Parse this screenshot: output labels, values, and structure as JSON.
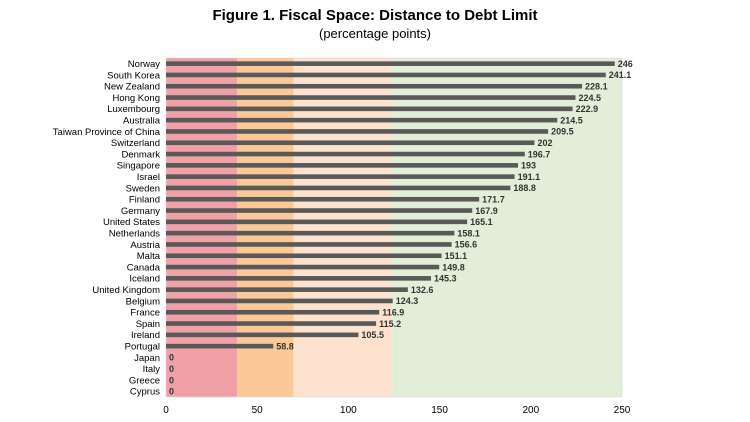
{
  "chart_data": {
    "type": "bar",
    "orientation": "horizontal",
    "title": "Figure 1. Fiscal Space: Distance to Debt Limit",
    "subtitle": "(percentage points)",
    "xlabel": "",
    "ylabel": "",
    "xlim": [
      0,
      250
    ],
    "x_ticks": [
      "0",
      "50",
      "100",
      "150",
      "200",
      "250"
    ],
    "grid": false,
    "bar_color": "#595959",
    "background_bands": [
      {
        "from": 0,
        "to": 39,
        "color": "#f2a0a8"
      },
      {
        "from": 39,
        "to": 70,
        "color": "#fbc896"
      },
      {
        "from": 70,
        "to": 124,
        "color": "#fde3cf"
      },
      {
        "from": 124,
        "to": 250,
        "color": "#e3eed8"
      }
    ],
    "categories": [
      "Norway",
      "South Korea",
      "New Zealand",
      "Hong Kong",
      "Luxembourg",
      "Australia",
      "Taiwan Province of China",
      "Switzerland",
      "Denmark",
      "Singapore",
      "Israel",
      "Sweden",
      "Finland",
      "Germany",
      "United States",
      "Netherlands",
      "Austria",
      "Malta",
      "Canada",
      "Iceland",
      "United Kingdom",
      "Belgium",
      "France",
      "Spain",
      "Ireland",
      "Portugal",
      "Japan",
      "Italy",
      "Greece",
      "Cyprus"
    ],
    "values": [
      246,
      241.1,
      228.1,
      224.5,
      222.9,
      214.5,
      209.5,
      202,
      196.7,
      193,
      191.1,
      188.8,
      171.7,
      167.9,
      165.1,
      158.1,
      156.6,
      151.1,
      149.8,
      145.3,
      132.6,
      124.3,
      116.9,
      115.2,
      105.5,
      58.8,
      0,
      0,
      0,
      0
    ],
    "value_labels": [
      "246",
      "241.1",
      "228.1",
      "224.5",
      "222.9",
      "214.5",
      "209.5",
      "202",
      "196.7",
      "193",
      "191.1",
      "188.8",
      "171.7",
      "167.9",
      "165.1",
      "158.1",
      "156.6",
      "151.1",
      "149.8",
      "145.3",
      "132.6",
      "124.3",
      "116.9",
      "115.2",
      "105.5",
      "58.8",
      "0",
      "0",
      "0",
      "0"
    ]
  }
}
